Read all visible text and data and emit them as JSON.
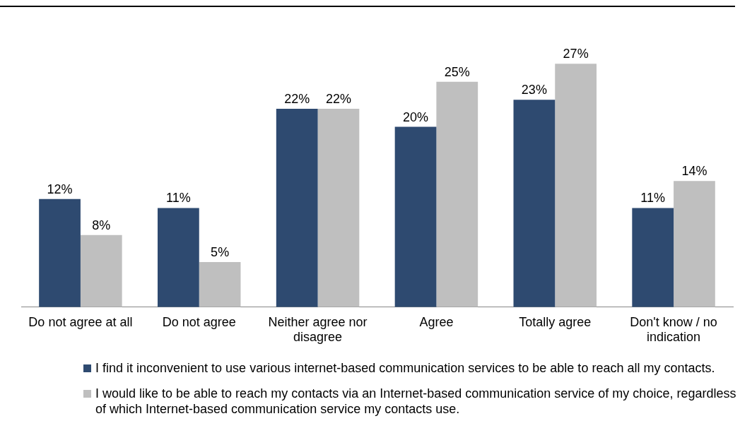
{
  "chart_data": {
    "type": "bar",
    "categories": [
      "Do not agree at all",
      "Do not agree",
      "Neither agree nor disagree",
      "Agree",
      "Totally agree",
      "Don't know / no indication"
    ],
    "series": [
      {
        "name": "I find it inconvenient to use various internet-based communication services to be able to reach all my contacts.",
        "color": "#2e4a70",
        "values": [
          12,
          11,
          22,
          20,
          23,
          11
        ],
        "value_labels": [
          "12%",
          "11%",
          "22%",
          "20%",
          "23%",
          "11%"
        ]
      },
      {
        "name": "I would like to be able to reach my contacts via an Internet-based communication service of my choice, regardless of which Internet-based communication service my contacts use.",
        "color": "#bfbfbf",
        "values": [
          8,
          5,
          22,
          25,
          27,
          14
        ],
        "value_labels": [
          "8%",
          "5%",
          "22%",
          "25%",
          "27%",
          "14%"
        ]
      }
    ],
    "legend": "bottom",
    "grid": false
  }
}
